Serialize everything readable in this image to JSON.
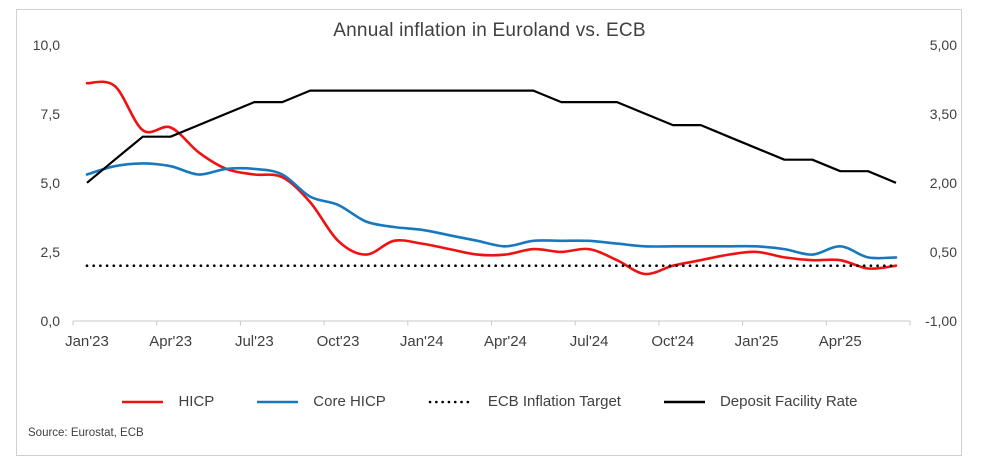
{
  "title": "Annual inflation in Euroland vs. ECB",
  "source": "Source: Eurostat, ECB",
  "colors": {
    "hicp_red": "#ef1212",
    "core_blue": "#1878be",
    "black": "#000000",
    "axis_text": "#404040",
    "axis_line": "#c9c9c9",
    "frame_border": "#d2cfcf"
  },
  "legend": [
    {
      "label": "HICP"
    },
    {
      "label": "Core HICP"
    },
    {
      "label": "ECB Inflation Target"
    },
    {
      "label": "Deposit Facility Rate"
    }
  ],
  "chart_data": {
    "type": "line",
    "title": "Annual inflation in Euroland vs. ECB",
    "x_months": [
      "Jan'23",
      "Feb'23",
      "Mar'23",
      "Apr'23",
      "May'23",
      "Jun'23",
      "Jul'23",
      "Aug'23",
      "Sep'23",
      "Oct'23",
      "Nov'23",
      "Dec'23",
      "Jan'24",
      "Feb'24",
      "Mar'24",
      "Apr'24",
      "May'24",
      "Jun'24",
      "Jul'24",
      "Aug'24",
      "Sep'24",
      "Oct'24",
      "Nov'24",
      "Dec'24",
      "Jan'25",
      "Feb'25",
      "Mar'25",
      "Apr'25",
      "May'25",
      "Jun'25"
    ],
    "x_tick_labels": [
      "Jan'23",
      "Apr'23",
      "Jul'23",
      "Oct'23",
      "Jan'24",
      "Apr'24",
      "Jul'24",
      "Oct'24",
      "Jan'25",
      "Apr'25"
    ],
    "left_axis": {
      "min": 0,
      "max": 10,
      "tick_labels": [
        "0,0",
        "2,5",
        "5,0",
        "7,5",
        "10,0"
      ],
      "tick_values": [
        0,
        2.5,
        5,
        7.5,
        10
      ]
    },
    "right_axis": {
      "min": -1,
      "max": 5,
      "tick_labels": [
        "-1,00",
        "0,50",
        "2,00",
        "3,50",
        "5,00"
      ],
      "tick_values": [
        -1,
        0.5,
        2,
        3.5,
        5
      ]
    },
    "grid": false,
    "legend_position": "bottom",
    "series": [
      {
        "name": "HICP",
        "axis": "left",
        "style": "smooth",
        "color": "#ef1212",
        "width": 2.6,
        "values": [
          8.6,
          8.5,
          6.9,
          7.0,
          6.1,
          5.5,
          5.3,
          5.2,
          4.3,
          2.9,
          2.4,
          2.9,
          2.8,
          2.6,
          2.4,
          2.4,
          2.6,
          2.5,
          2.6,
          2.2,
          1.7,
          2.0,
          2.2,
          2.4,
          2.5,
          2.3,
          2.2,
          2.2,
          1.9,
          2.0
        ]
      },
      {
        "name": "Core HICP",
        "axis": "left",
        "style": "smooth",
        "color": "#1878be",
        "width": 2.6,
        "values": [
          5.3,
          5.6,
          5.7,
          5.6,
          5.3,
          5.5,
          5.5,
          5.3,
          4.5,
          4.2,
          3.6,
          3.4,
          3.3,
          3.1,
          2.9,
          2.7,
          2.9,
          2.9,
          2.9,
          2.8,
          2.7,
          2.7,
          2.7,
          2.7,
          2.7,
          2.6,
          2.4,
          2.7,
          2.3,
          2.3
        ]
      },
      {
        "name": "ECB Inflation Target",
        "axis": "left",
        "style": "dotted",
        "color": "#000000",
        "width": 2.6,
        "values": [
          2,
          2,
          2,
          2,
          2,
          2,
          2,
          2,
          2,
          2,
          2,
          2,
          2,
          2,
          2,
          2,
          2,
          2,
          2,
          2,
          2,
          2,
          2,
          2,
          2,
          2,
          2,
          2,
          2,
          2
        ]
      },
      {
        "name": "Deposit Facility Rate",
        "axis": "right",
        "style": "straight",
        "color": "#000000",
        "width": 2.2,
        "values": [
          2.0,
          2.5,
          3.0,
          3.0,
          3.25,
          3.5,
          3.75,
          3.75,
          4.0,
          4.0,
          4.0,
          4.0,
          4.0,
          4.0,
          4.0,
          4.0,
          4.0,
          3.75,
          3.75,
          3.75,
          3.5,
          3.25,
          3.25,
          3.0,
          2.75,
          2.5,
          2.5,
          2.25,
          2.25,
          2.0
        ]
      }
    ]
  }
}
